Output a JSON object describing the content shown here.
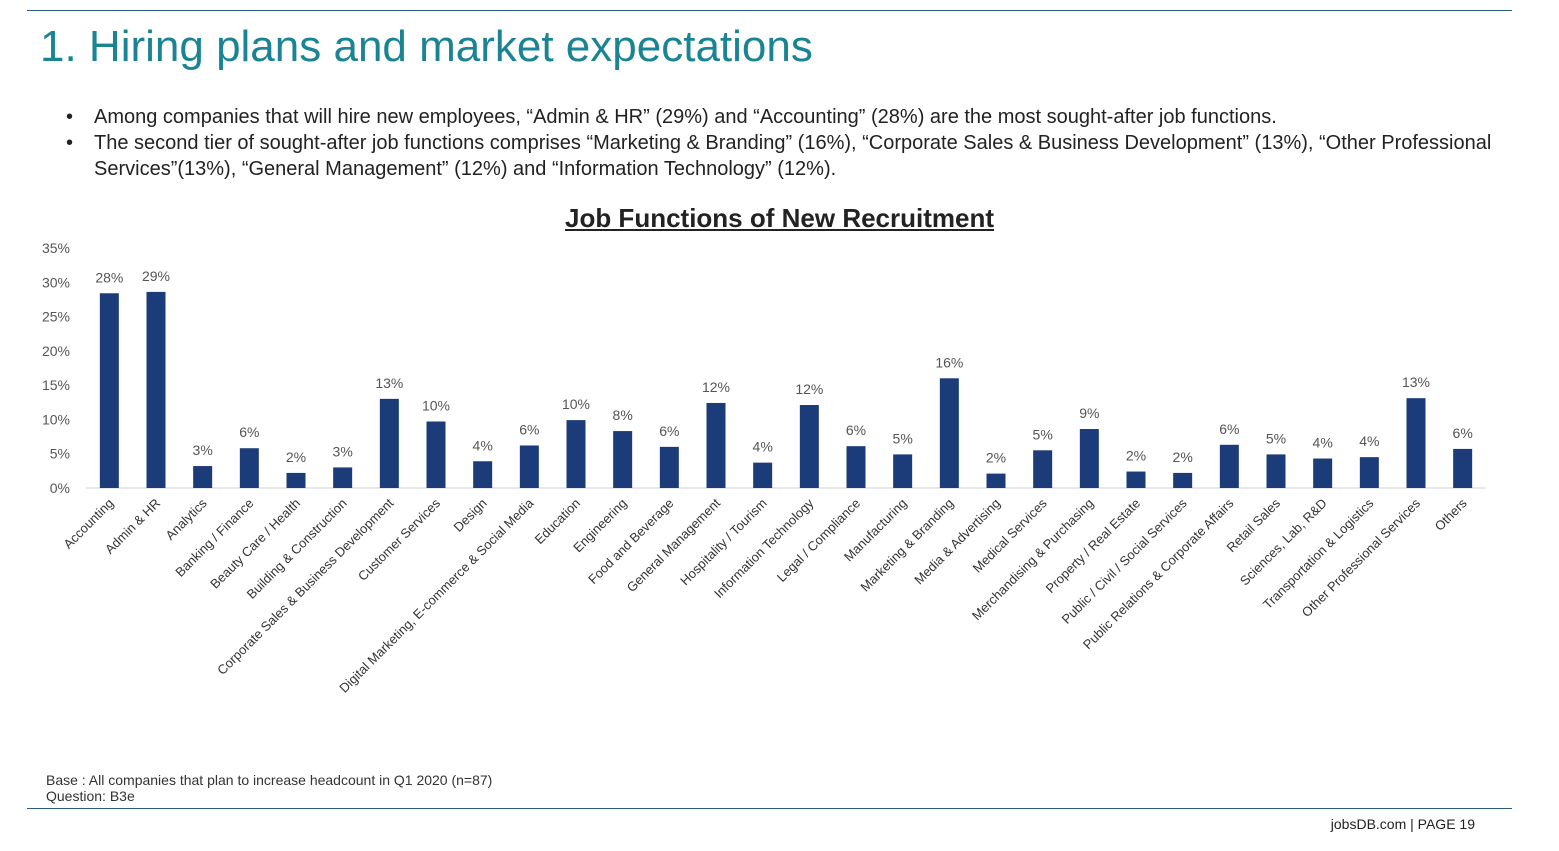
{
  "slide": {
    "title": "1. Hiring plans and market expectations",
    "bullet_marker": "•",
    "bullets": [
      "Among companies that will hire new employees, “Admin & HR” (29%) and  “Accounting” (28%) are the most sought-after job functions.",
      "The second tier of sought-after job functions comprises “Marketing & Branding” (16%), “Corporate Sales & Business Development” (13%), “Other Professional Services”(13%), “General Management” (12%) and “Information Technology” (12%)."
    ],
    "base_note": "Base : All companies that plan to increase headcount in Q1 2020 (n=87)",
    "question_note": "Question: B3e",
    "footer_brand": "jobsDB.com",
    "footer_sep": "|",
    "footer_page": "PAGE 19"
  },
  "chart_data": {
    "type": "bar",
    "title": "Job Functions of New Recruitment",
    "xlabel": "",
    "ylabel": "",
    "ylim": [
      0,
      35
    ],
    "yticks": [
      "0%",
      "5%",
      "10%",
      "15%",
      "20%",
      "25%",
      "30%",
      "35%"
    ],
    "grid": false,
    "legend": "none",
    "bar_color": "#1b3c78",
    "categories": [
      "Accounting",
      "Admin & HR",
      "Analytics",
      "Banking / Finance",
      "Beauty Care / Health",
      "Building & Construction",
      "Corporate Sales & Business Development",
      "Customer Services",
      "Design",
      "Digital Marketing, E-commerce & Social Media",
      "Education",
      "Engineering",
      "Food and Beverage",
      "General Management",
      "Hospitality / Tourism",
      "Information Technology",
      "Legal / Compliance",
      "Manufacturing",
      "Marketing & Branding",
      "Media & Advertising",
      "Medical Services",
      "Merchandising & Purchasing",
      "Property / Real Estate",
      "Public / Civil / Social Services",
      "Public Relations & Corporate Affairs",
      "Retail Sales",
      "Sciences, Lab, R&D",
      "Transportation & Logistics",
      "Other Professional Services",
      "Others"
    ],
    "values": [
      28.4,
      28.6,
      3.2,
      5.8,
      2.2,
      3.0,
      13.0,
      9.7,
      3.9,
      6.2,
      9.9,
      8.3,
      6.0,
      12.4,
      3.7,
      12.1,
      6.1,
      4.9,
      16.0,
      2.1,
      5.5,
      8.6,
      2.4,
      2.2,
      6.3,
      4.9,
      4.3,
      4.5,
      13.1,
      5.7
    ],
    "data_labels": [
      "28%",
      "29%",
      "3%",
      "6%",
      "2%",
      "3%",
      "13%",
      "10%",
      "4%",
      "6%",
      "10%",
      "8%",
      "6%",
      "12%",
      "4%",
      "12%",
      "6%",
      "5%",
      "16%",
      "2%",
      "5%",
      "9%",
      "2%",
      "2%",
      "6%",
      "5%",
      "4%",
      "4%",
      "13%",
      "6%"
    ]
  }
}
